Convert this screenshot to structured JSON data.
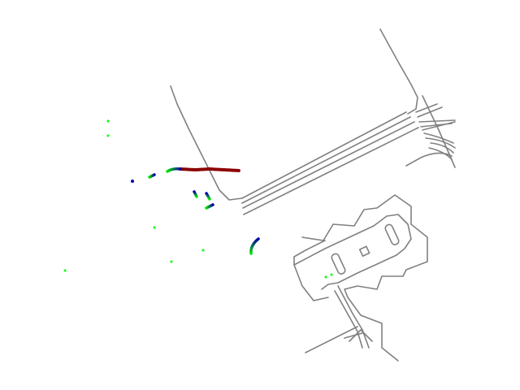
{
  "scene": {
    "background": "#ffffff",
    "colors": {
      "road_boundary": "#808080",
      "ego_trajectory": "#8b0000",
      "agent_track_start": "#00e600",
      "agent_track_end": "#0000aa",
      "stationary_agent": "#00ff00"
    }
  }
}
